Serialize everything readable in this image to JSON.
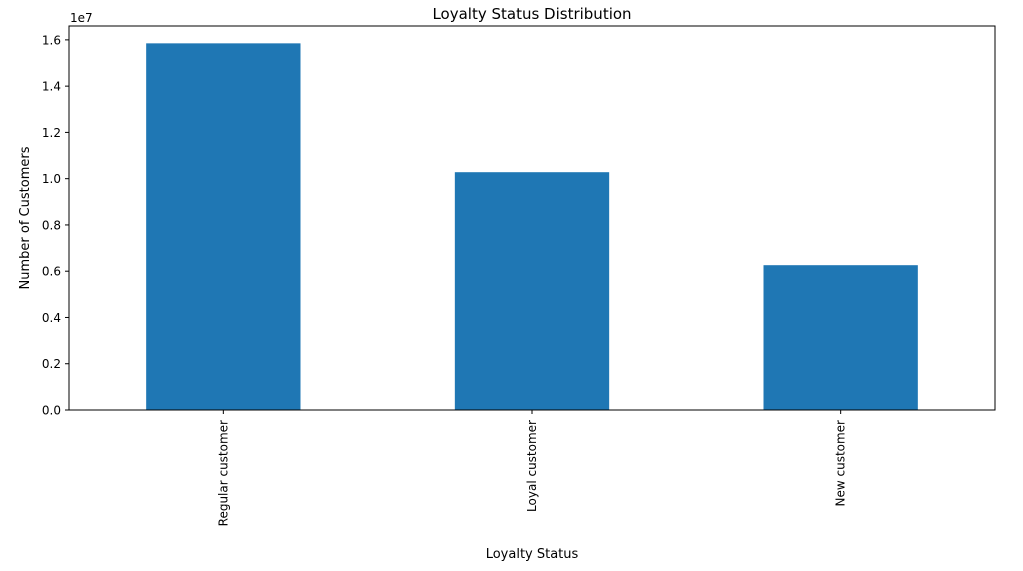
{
  "chart_data": {
    "type": "bar",
    "title": "Loyalty Status Distribution",
    "xlabel": "Loyalty Status",
    "ylabel": "Number of Customers",
    "y_offset_label": "1e7",
    "categories": [
      "Regular customer",
      "Loyal customer",
      "New customer"
    ],
    "values": [
      15850000,
      10280000,
      6260000
    ],
    "ylim": [
      0,
      16600000
    ],
    "yticks": [
      0,
      2000000,
      4000000,
      6000000,
      8000000,
      10000000,
      12000000,
      14000000,
      16000000
    ],
    "ytick_labels": [
      "0.0",
      "0.2",
      "0.4",
      "0.6",
      "0.8",
      "1.0",
      "1.2",
      "1.4",
      "1.6"
    ],
    "bar_color": "#1f77b4",
    "grid": false,
    "legend": "none"
  }
}
